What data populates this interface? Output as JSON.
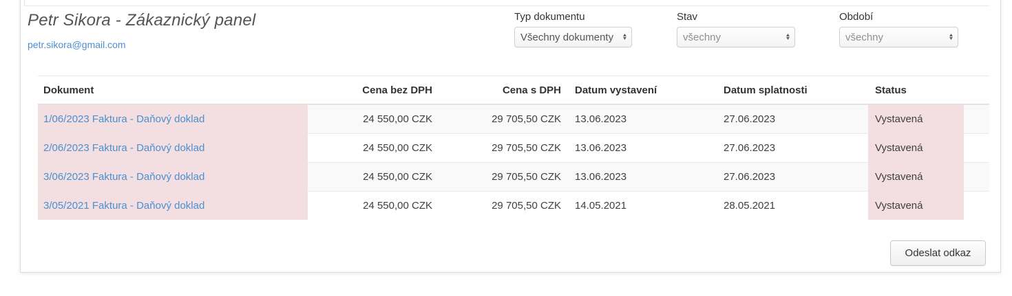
{
  "header": {
    "title": "Petr Sikora - Zákaznický panel",
    "email": "petr.sikora@gmail.com"
  },
  "filters": [
    {
      "label": "Typ dokumentu",
      "value": "Všechny dokumenty"
    },
    {
      "label": "Stav",
      "value": "všechny"
    },
    {
      "label": "Období",
      "value": "všechny"
    }
  ],
  "icons": {
    "select_arrow_up": "▲",
    "select_arrow_down": "▼"
  },
  "table": {
    "columns": [
      "Dokument",
      "Cena bez DPH",
      "Cena s DPH",
      "Datum vystavení",
      "Datum splatnosti",
      "Status"
    ],
    "rows": [
      {
        "dokument": "1/06/2023 Faktura - Daňový doklad",
        "cena_bez_dph": "24 550,00 CZK",
        "cena_s_dph": "29 705,50 CZK",
        "datum_vystaveni": "13.06.2023",
        "datum_splatnosti": "27.06.2023",
        "status": "Vystavená"
      },
      {
        "dokument": "2/06/2023 Faktura - Daňový doklad",
        "cena_bez_dph": "24 550,00 CZK",
        "cena_s_dph": "29 705,50 CZK",
        "datum_vystaveni": "13.06.2023",
        "datum_splatnosti": "27.06.2023",
        "status": "Vystavená"
      },
      {
        "dokument": "3/06/2023 Faktura - Daňový doklad",
        "cena_bez_dph": "24 550,00 CZK",
        "cena_s_dph": "29 705,50 CZK",
        "datum_vystaveni": "13.06.2023",
        "datum_splatnosti": "27.06.2023",
        "status": "Vystavená"
      },
      {
        "dokument": "3/05/2021 Faktura - Daňový doklad",
        "cena_bez_dph": "24 550,00 CZK",
        "cena_s_dph": "29 705,50 CZK",
        "datum_vystaveni": "14.05.2021",
        "datum_splatnosti": "28.05.2021",
        "status": "Vystavená"
      }
    ]
  },
  "footer": {
    "send_link_button": "Odeslat odkaz"
  },
  "colors": {
    "link_blue": "#4c8fce",
    "row_pink": "#f3dfe1",
    "stripe_gray": "#f9f9f9",
    "panel_border": "#d8dee3"
  }
}
